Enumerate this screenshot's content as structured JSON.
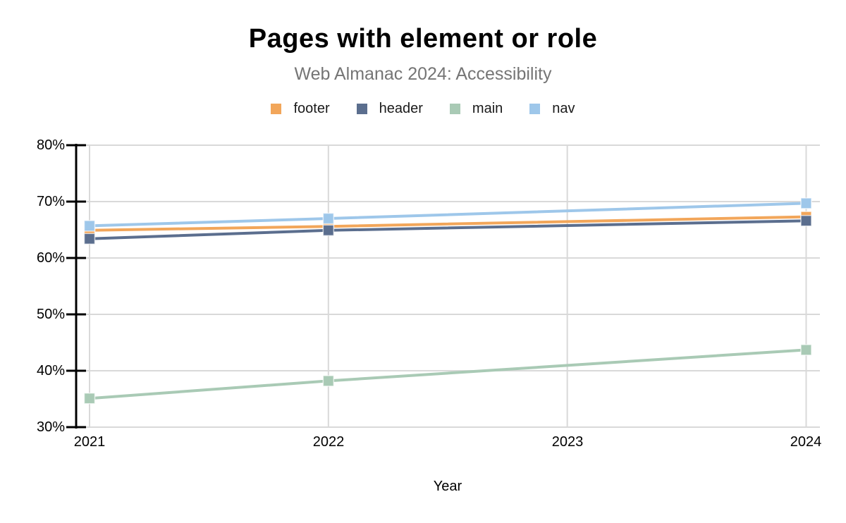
{
  "chart_data": {
    "type": "line",
    "title": "Pages with element or role",
    "subtitle": "Web Almanac 2024: Accessibility",
    "xlabel": "Year",
    "x": [
      2021,
      2022,
      2024
    ],
    "x_axis_ticks": [
      2021,
      2022,
      2023,
      2024
    ],
    "x_tick_labels": [
      "2021",
      "2022",
      "2023",
      "2024"
    ],
    "y_tick_labels": [
      "80%",
      "70%",
      "60%",
      "50%",
      "40%",
      "30%"
    ],
    "y_tick_values": [
      80,
      70,
      60,
      50,
      40,
      30
    ],
    "ylim": [
      30,
      80
    ],
    "grid": true,
    "legend_position": "top",
    "marker": "square",
    "note": "No data point plotted for 2023; lines connect 2022 directly to 2024",
    "series": [
      {
        "name": "footer",
        "color": "#F2A65A",
        "values": [
          64.9,
          65.6,
          67.3
        ]
      },
      {
        "name": "header",
        "color": "#5B6E8E",
        "values": [
          63.4,
          64.9,
          66.6
        ]
      },
      {
        "name": "main",
        "color": "#A9CAB5",
        "values": [
          35.1,
          38.2,
          43.7
        ]
      },
      {
        "name": "nav",
        "color": "#9EC7EA",
        "values": [
          65.7,
          67.0,
          69.7
        ]
      }
    ],
    "colors": {
      "grid": "#D9D9D9",
      "axis": "#000000",
      "title": "#000000",
      "subtitle": "#757575",
      "tick_text": "#000000"
    }
  }
}
